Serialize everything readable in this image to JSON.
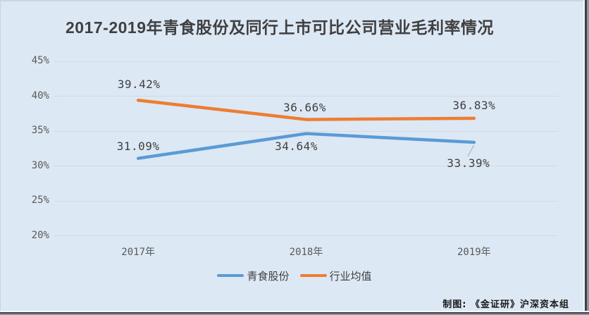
{
  "chart_data": {
    "type": "line",
    "title": "2017-2019年青食股份及同行上市可比公司营业毛利率情况",
    "categories": [
      "2017年",
      "2018年",
      "2019年"
    ],
    "series": [
      {
        "name": "青食股份",
        "color": "#5b9bd5",
        "values": [
          31.09,
          34.64,
          33.39
        ],
        "labels": [
          "31.09%",
          "34.64%",
          "33.39%"
        ]
      },
      {
        "name": "行业均值",
        "color": "#ed7d31",
        "values": [
          39.42,
          36.66,
          36.83
        ],
        "labels": [
          "39.42%",
          "36.66%",
          "36.83%"
        ]
      }
    ],
    "y_axis": {
      "min": 20,
      "max": 45,
      "tick_values": [
        45,
        40,
        35,
        30,
        25,
        20
      ],
      "tick_labels": [
        "45%",
        "40%",
        "35%",
        "30%",
        "25%",
        "20%"
      ]
    },
    "grid": true,
    "legend_position": "bottom",
    "background_color": "#dce9f5"
  },
  "footer": {
    "credit": "制图: 《金证研》沪深资本组"
  }
}
